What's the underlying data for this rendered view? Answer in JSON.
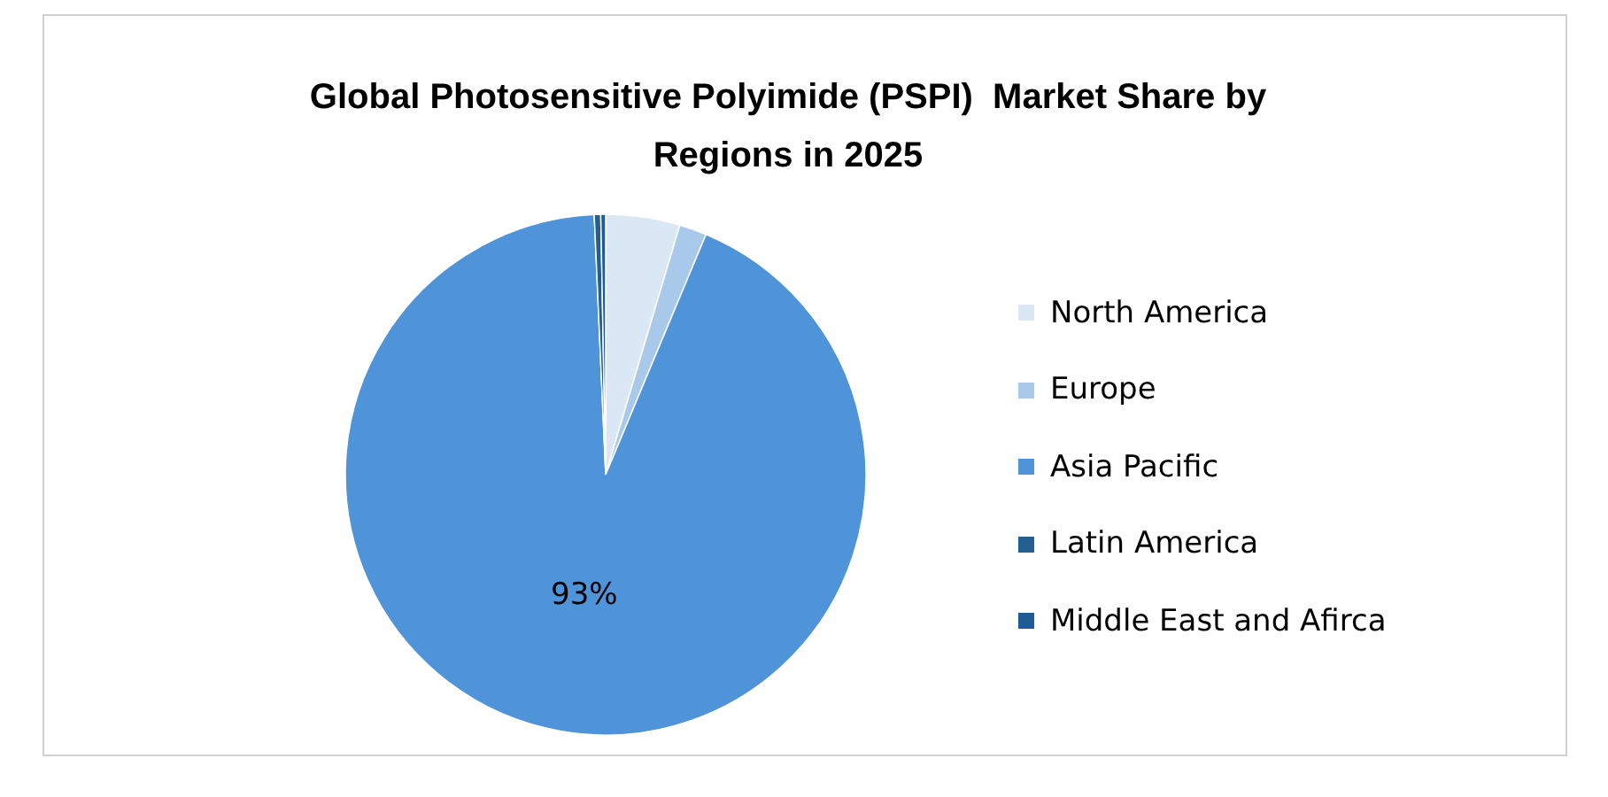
{
  "chart_data": {
    "type": "pie",
    "title": "Global Photosensitive Polyimide (PSPI)  Market Share by Regions in 2025",
    "categories": [
      "North America",
      "Europe",
      "Asia Pacific",
      "Latin America",
      "Middle East and Afirca"
    ],
    "values": [
      4.6,
      1.7,
      93,
      0.4,
      0.3
    ],
    "colors": [
      "#dae8f6",
      "#a9c9ea",
      "#4f94d9",
      "#255e91",
      "#1f5b96"
    ],
    "value_labels": [
      null,
      null,
      "93%",
      null,
      null
    ],
    "legend": "right"
  }
}
